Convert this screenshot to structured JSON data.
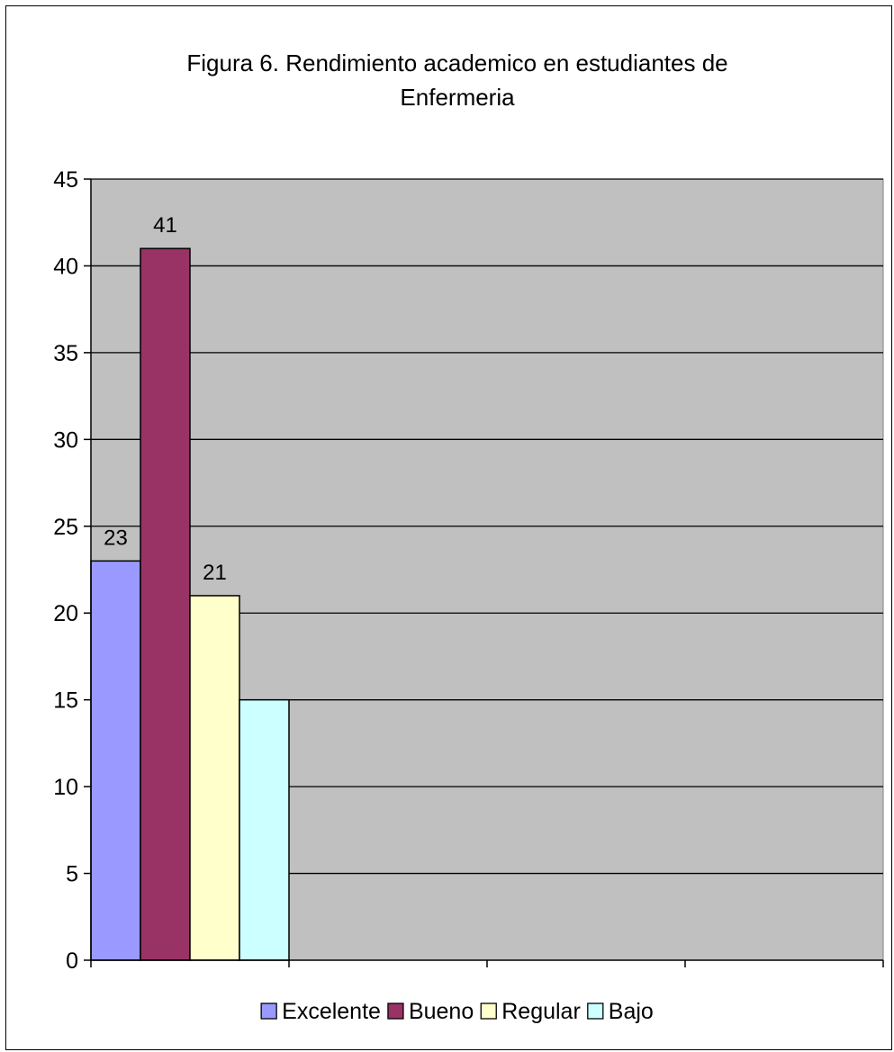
{
  "chart_data": {
    "type": "bar",
    "title_lines": [
      "Figura 6. Rendimiento academico en estudiantes de",
      "Enfermeria"
    ],
    "categories": [
      "Excelente",
      "Bueno",
      "Regular",
      "Bajo"
    ],
    "values": [
      23,
      41,
      21,
      15
    ],
    "data_labels": [
      "23",
      "41",
      "21",
      ""
    ],
    "colors": [
      "#9999FF",
      "#993366",
      "#FFFFCC",
      "#CCFFFF"
    ],
    "plot_background": "#C0C0C0",
    "ylim": [
      0,
      45
    ],
    "yticks": [
      0,
      5,
      10,
      15,
      20,
      25,
      30,
      35,
      40,
      45
    ],
    "ytick_labels": [
      "0",
      "5",
      "10",
      "15",
      "20",
      "25",
      "30",
      "35",
      "40",
      "45"
    ],
    "grid": true,
    "legend_position": "bottom",
    "xlabel": "",
    "ylabel": ""
  }
}
